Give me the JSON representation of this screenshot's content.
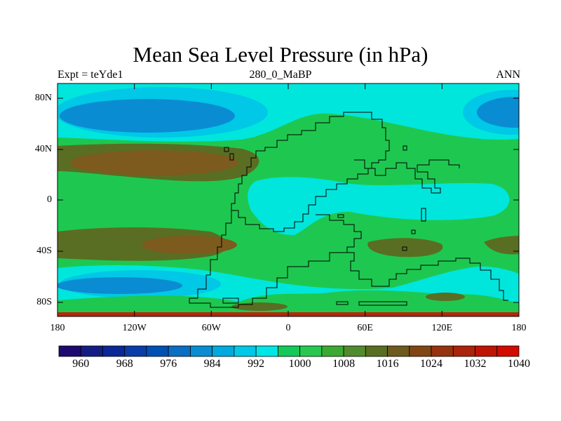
{
  "title": "Mean Sea Level Pressure (in hPa)",
  "subtitle_left": "Expt = teYde1",
  "subtitle_center": "280_0_MaBP",
  "subtitle_right": "ANN",
  "y_axis_labels": [
    "80N",
    "40N",
    "0",
    "40S",
    "80S"
  ],
  "x_axis_labels": [
    "180",
    "120W",
    "60W",
    "0",
    "60E",
    "120E",
    "180"
  ],
  "colorbar": {
    "labels": [
      "960",
      "968",
      "976",
      "984",
      "992",
      "1000",
      "1008",
      "1016",
      "1024",
      "1032",
      "1040"
    ],
    "colors": [
      "#1e0a6e",
      "#141e82",
      "#0a2896",
      "#0a3ca8",
      "#0050b4",
      "#0a6ec3",
      "#0a8cd2",
      "#00aadc",
      "#00c8e6",
      "#00e6e6",
      "#14c85a",
      "#28c850",
      "#3caa32",
      "#508c2d",
      "#5a6e23",
      "#6e5a1e",
      "#824614",
      "#96320f",
      "#aa230a",
      "#be1405",
      "#d20a00"
    ]
  },
  "map_colors": {
    "base": "#1ec850",
    "cyan": "#00e6dc",
    "light_blue": "#00c8e6",
    "blue": "#0a8cd2",
    "olive": "#5a6e23",
    "brown": "#7d5a1e",
    "coastline": "#000000",
    "bottom_edge": "#b4280a"
  }
}
